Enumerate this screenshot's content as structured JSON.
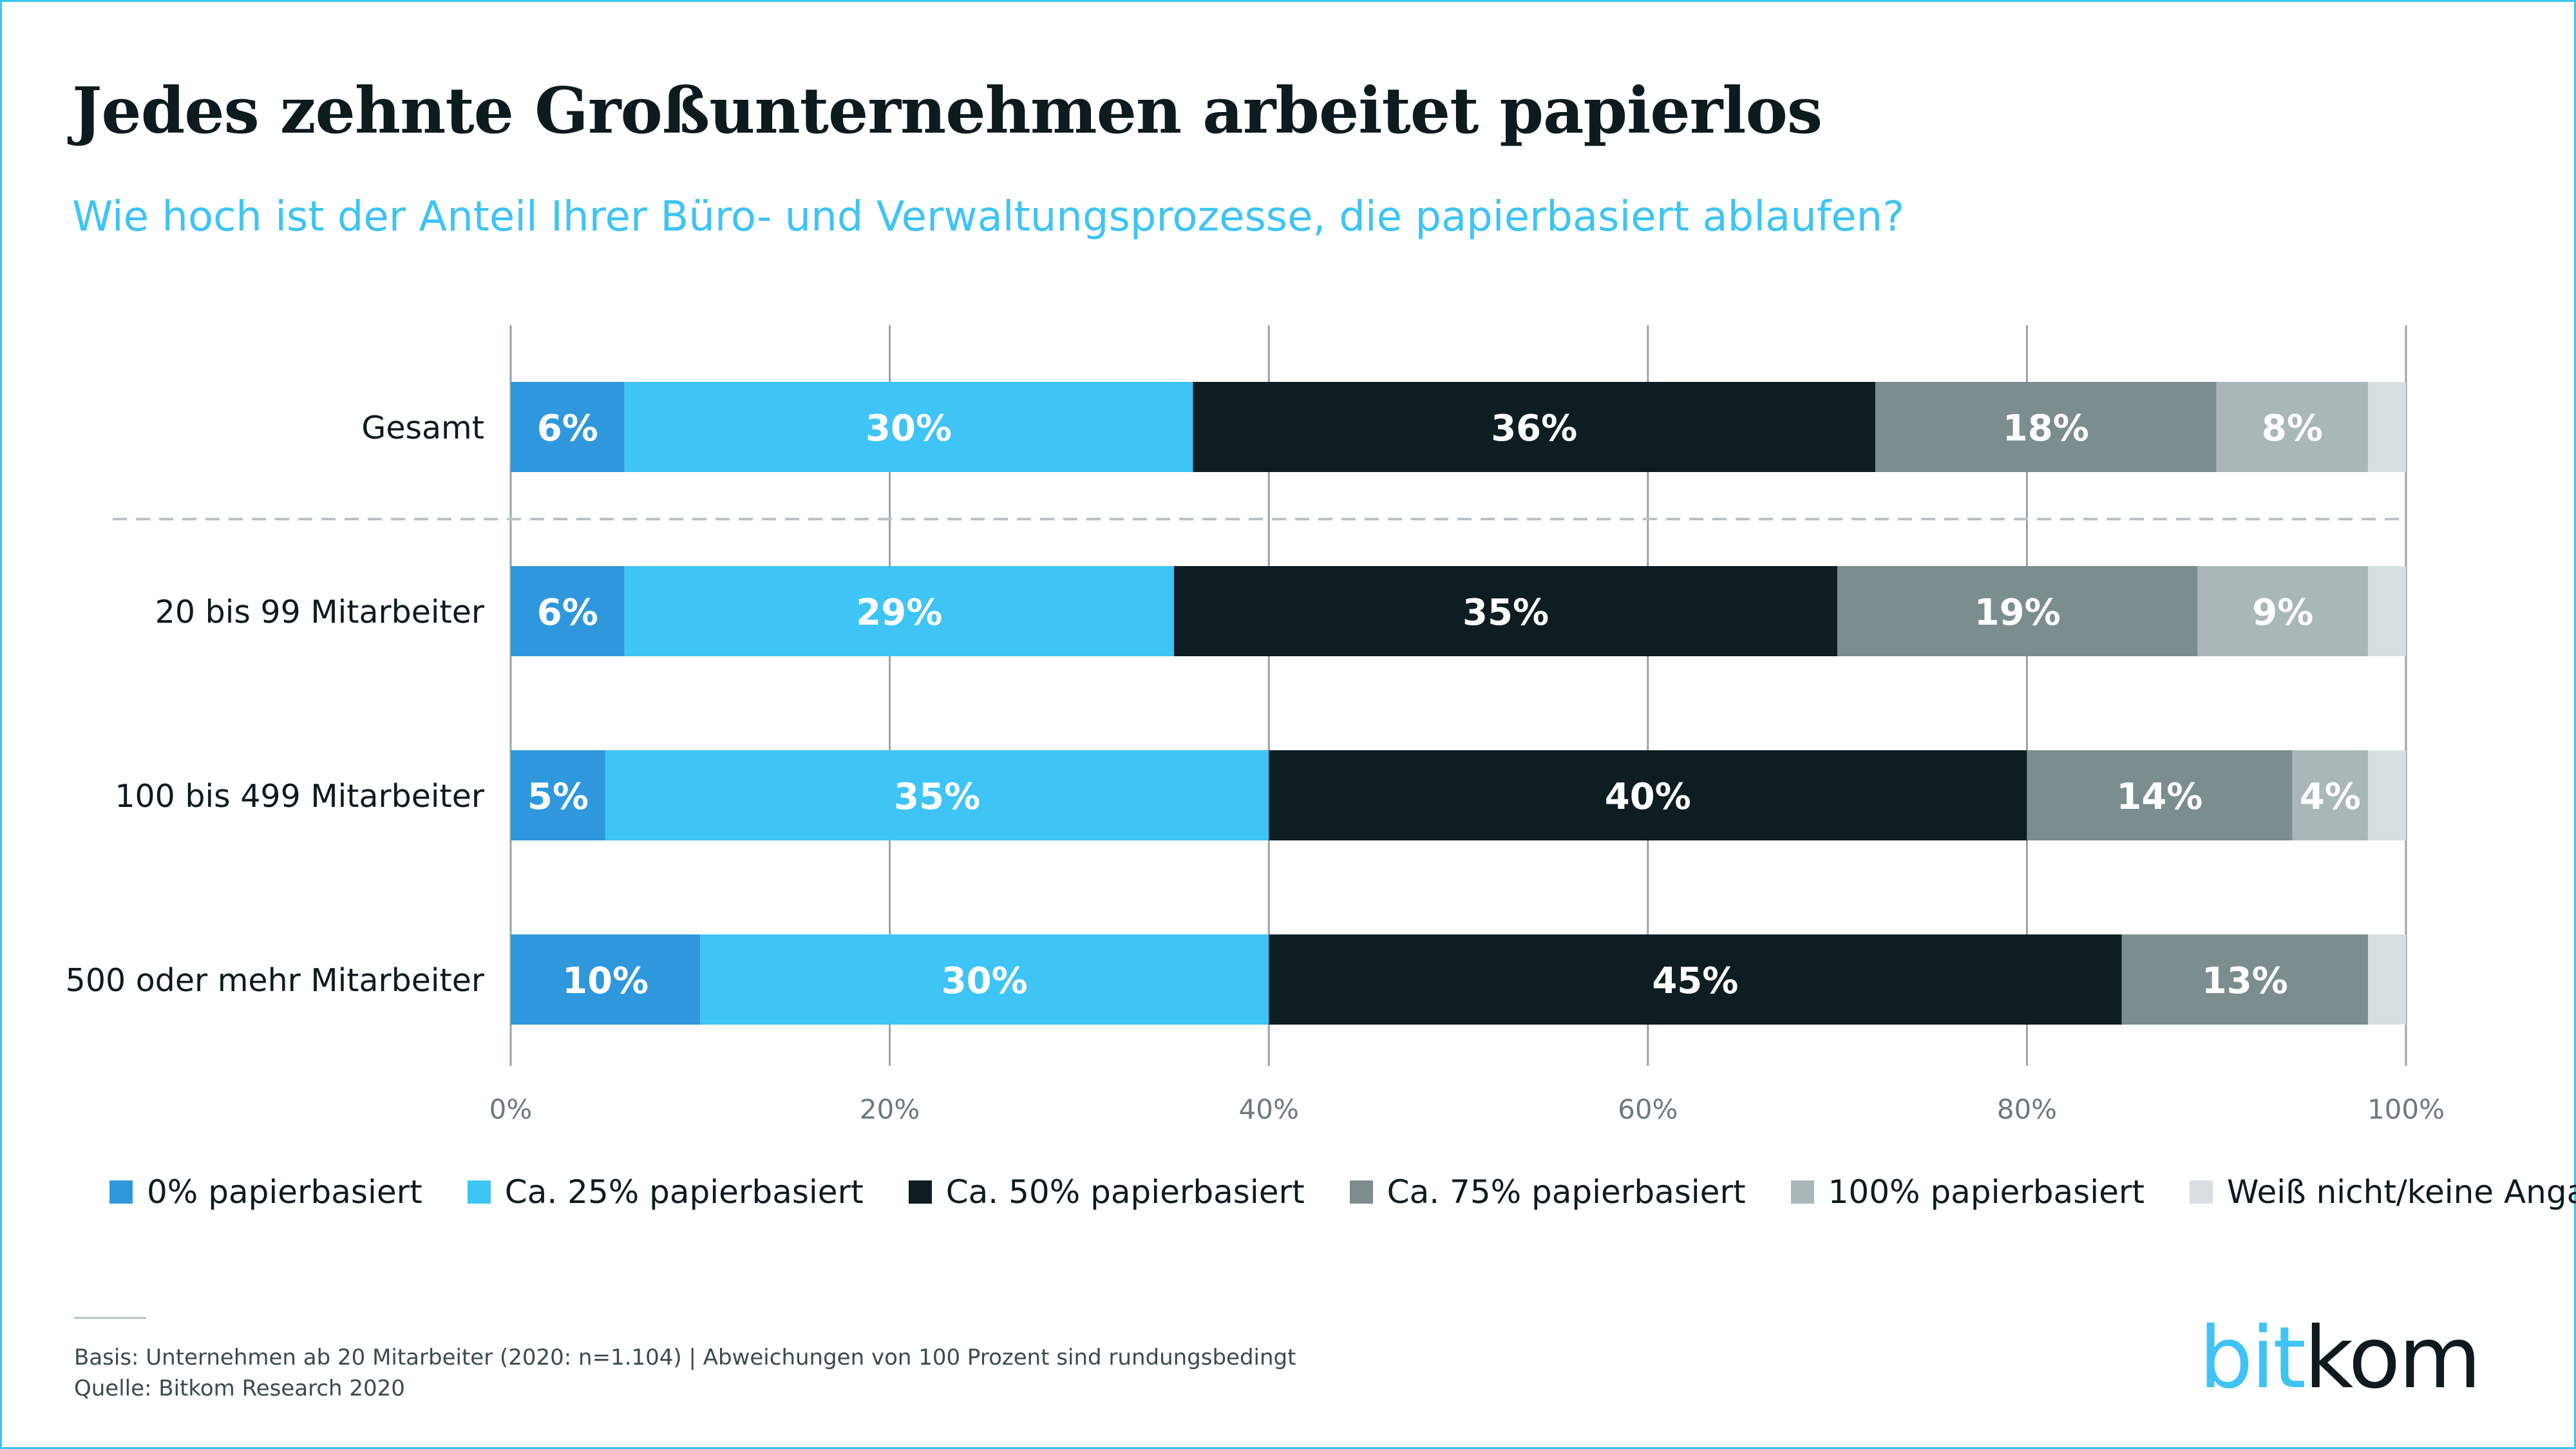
{
  "title": "Jedes zehnte Großunternehmen arbeitet papierlos",
  "subtitle": "Wie hoch ist der Anteil Ihrer Büro- und Verwaltungsprozesse, die papierbasiert ablaufen?",
  "colors": [
    "#2f98dd",
    "#3ec4f5",
    "#0d1d22",
    "#7c8d8f",
    "#aab7b8",
    "#d7dfe0"
  ],
  "chart_data": {
    "type": "bar",
    "orientation": "horizontal",
    "stacked": true,
    "categories": [
      "Gesamt",
      "20 bis 99 Mitarbeiter",
      "100 bis 499 Mitarbeiter",
      "500 oder mehr Mitarbeiter"
    ],
    "series": [
      {
        "name": "0% papierbasiert",
        "values": [
          6,
          6,
          5,
          10
        ],
        "labels": [
          "6%",
          "6%",
          "5%",
          "10%"
        ]
      },
      {
        "name": "Ca. 25% papierbasiert",
        "values": [
          30,
          29,
          35,
          30
        ],
        "labels": [
          "30%",
          "29%",
          "35%",
          "30%"
        ]
      },
      {
        "name": "Ca. 50% papierbasiert",
        "values": [
          36,
          35,
          40,
          45
        ],
        "labels": [
          "36%",
          "35%",
          "40%",
          "45%"
        ]
      },
      {
        "name": "Ca. 75% papierbasiert",
        "values": [
          18,
          19,
          14,
          13
        ],
        "labels": [
          "18%",
          "19%",
          "14%",
          "13%"
        ]
      },
      {
        "name": "100% papierbasiert",
        "values": [
          8,
          9,
          4,
          0
        ],
        "labels": [
          "8%",
          "9%",
          "4%",
          ""
        ]
      },
      {
        "name": "Weiß nicht/keine Angabe",
        "values": [
          2,
          2,
          2,
          2
        ],
        "labels": [
          "",
          "",
          "",
          ""
        ]
      }
    ],
    "xticks": [
      "0%",
      "20%",
      "40%",
      "60%",
      "80%",
      "100%"
    ],
    "xlim": [
      0,
      100
    ],
    "grid": true,
    "legend": "bottom"
  },
  "legend_labels": [
    "0% papierbasiert",
    "Ca. 25% papierbasiert",
    "Ca. 50% papierbasiert",
    "Ca. 75% papierbasiert",
    "100% papierbasiert",
    "Weiß nicht/keine Angabe"
  ],
  "footer": {
    "basis": "Basis: Unternehmen ab 20 Mitarbeiter (2020: n=1.104) | Abweichungen von 100 Prozent sind rundungsbedingt",
    "source": "Quelle: Bitkom Research 2020"
  },
  "logo": {
    "part1": "bit",
    "part2": "kom"
  }
}
